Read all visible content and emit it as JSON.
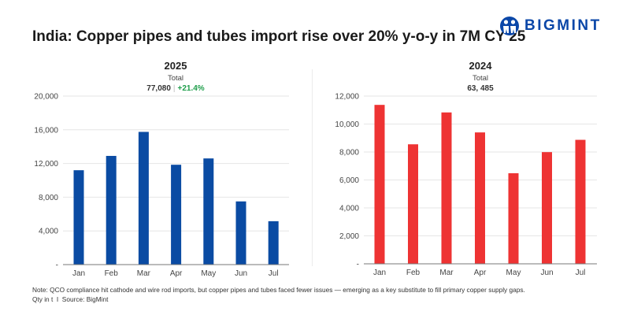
{
  "title": "India: Copper pipes and tubes import rise over 20% y-o-y in 7M CY'25",
  "logo": {
    "text": "BIGMINT",
    "color": "#0b47a8"
  },
  "note": "Note: QCO compliance hit cathode and wire rod imports, but copper pipes and tubes faced fewer issues — emerging as a key substitute to fill primary copper supply gaps.",
  "source": "Qty in t  I  Source: BigMint",
  "chart_data": [
    {
      "type": "bar",
      "title": "2025",
      "total_label": "Total",
      "total": "77,080",
      "change": "+21.4%",
      "categories": [
        "Jan",
        "Feb",
        "Mar",
        "Apr",
        "May",
        "Jun",
        "Jul"
      ],
      "values": [
        11200,
        12900,
        15750,
        11850,
        12600,
        7500,
        5150
      ],
      "ylim": [
        0,
        20000
      ],
      "yticks": [
        0,
        4000,
        8000,
        12000,
        16000,
        20000
      ],
      "ytick_labels": [
        "-",
        "4,000",
        "8,000",
        "12,000",
        "16,000",
        "20,000"
      ],
      "color": "#0a4ba3",
      "grid": true
    },
    {
      "type": "bar",
      "title": "2024",
      "total_label": "Total",
      "total": "63, 485",
      "categories": [
        "Jan",
        "Feb",
        "Mar",
        "Apr",
        "May",
        "Jun",
        "Jul"
      ],
      "values": [
        11370,
        8550,
        10830,
        9400,
        6480,
        7990,
        8870
      ],
      "ylim": [
        0,
        12000
      ],
      "yticks": [
        0,
        2000,
        4000,
        6000,
        8000,
        10000,
        12000
      ],
      "ytick_labels": [
        "-",
        "2,000",
        "4,000",
        "6,000",
        "8,000",
        "10,000",
        "12,000"
      ],
      "color": "#ee3333",
      "grid": true
    }
  ]
}
